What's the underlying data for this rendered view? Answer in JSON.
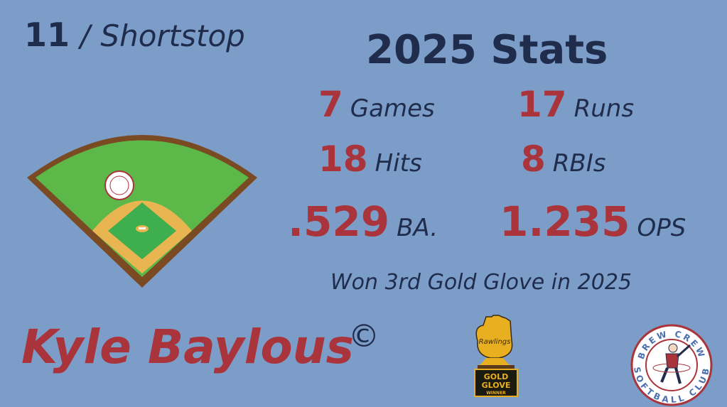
{
  "player": {
    "number": "11",
    "separator": "/",
    "position": "Shortstop",
    "name": "Kyle Baylous",
    "copyright": "©"
  },
  "stats": {
    "title": "2025 Stats",
    "items": [
      {
        "value": "7",
        "label": "Games"
      },
      {
        "value": "17",
        "label": "Runs"
      },
      {
        "value": "18",
        "label": "Hits"
      },
      {
        "value": "8",
        "label": "RBIs"
      },
      {
        "value": ".529",
        "label": "BA."
      },
      {
        "value": "1.235",
        "label": "OPS"
      }
    ],
    "note": "Won 3rd Gold Glove in 2025"
  },
  "award": {
    "brand": "Rawlings",
    "line1": "GOLD",
    "line2": "GLOVE",
    "line3": "WINNER"
  },
  "logo": {
    "top": "BREW CREW",
    "bottom": "SOFTBALL CLUB"
  },
  "colors": {
    "background": "#7d9dc9",
    "navy": "#1f2c4c",
    "red": "#a9343b",
    "gold": "#e8b021",
    "grass": "#5cb848",
    "infield": "#e8b550"
  }
}
